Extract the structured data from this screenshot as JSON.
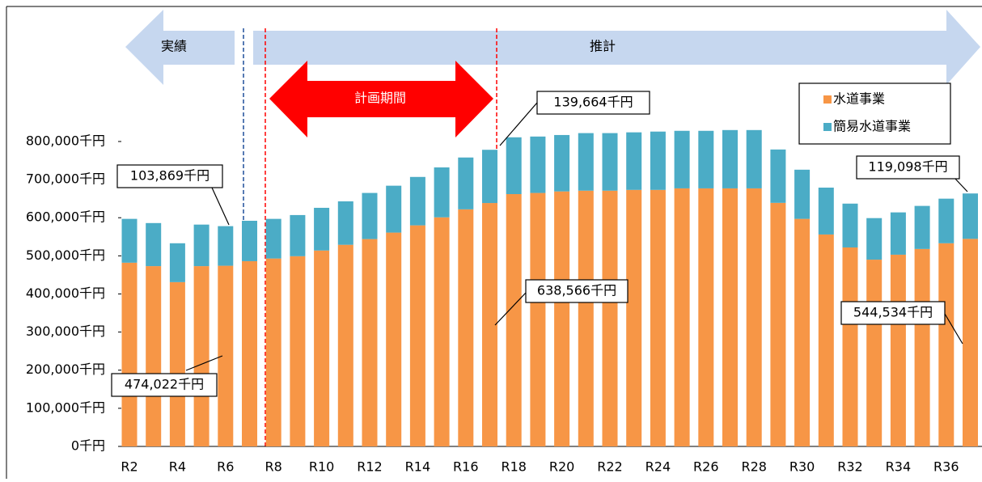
{
  "chart_data": {
    "type": "stacked_bar",
    "categories": [
      "R2",
      null,
      "R4",
      null,
      "R6",
      null,
      "R8",
      null,
      "R10",
      null,
      "R12",
      null,
      "R14",
      null,
      "R16",
      null,
      "R18",
      null,
      "R20",
      null,
      "R22",
      null,
      "R24",
      null,
      "R26",
      null,
      "R28",
      null,
      "R30",
      null,
      "R32",
      null,
      "R34",
      null,
      "R36",
      null
    ],
    "series": [
      {
        "name": "水道事業",
        "color": "#f79646",
        "values": [
          482000,
          473000,
          431000,
          473000,
          474022,
          486000,
          493000,
          499000,
          514000,
          529000,
          544000,
          561000,
          580000,
          601000,
          622000,
          638566,
          662000,
          665000,
          669000,
          671000,
          671000,
          673000,
          673000,
          677000,
          677000,
          677000,
          677000,
          639000,
          597000,
          556000,
          522000,
          490000,
          503000,
          518000,
          533000,
          544534
        ],
        "value_labels": [
          null,
          null,
          null,
          null,
          "474,022千円",
          null,
          null,
          null,
          null,
          null,
          null,
          null,
          null,
          null,
          null,
          "638,566千円",
          null,
          null,
          null,
          null,
          null,
          null,
          null,
          null,
          null,
          null,
          null,
          null,
          null,
          null,
          null,
          null,
          null,
          null,
          null,
          "544,534千円"
        ]
      },
      {
        "name": "簡易水道事業",
        "color": "#4bacc6",
        "values": [
          115000,
          113000,
          102000,
          109000,
          103869,
          106000,
          104000,
          108000,
          112000,
          114000,
          121000,
          123000,
          127000,
          131000,
          136000,
          139664,
          149000,
          148000,
          148000,
          151000,
          151000,
          151000,
          153000,
          151000,
          151000,
          153000,
          153000,
          140000,
          129000,
          123000,
          115000,
          109000,
          111000,
          113000,
          117000,
          119098
        ],
        "value_labels": [
          null,
          null,
          null,
          null,
          "103,869千円",
          null,
          null,
          null,
          null,
          null,
          null,
          null,
          null,
          null,
          null,
          "139,664千円",
          null,
          null,
          null,
          null,
          null,
          null,
          null,
          null,
          null,
          null,
          null,
          null,
          null,
          null,
          null,
          null,
          null,
          null,
          null,
          "119,098千円"
        ]
      }
    ],
    "ylim": [
      0,
      1150000
    ],
    "yticks": [
      {
        "value": 0,
        "label": "0千円"
      },
      {
        "value": 100000,
        "label": "100,000千円"
      },
      {
        "value": 200000,
        "label": "200,000千円"
      },
      {
        "value": 300000,
        "label": "300,000千円"
      },
      {
        "value": 400000,
        "label": "400,000千円"
      },
      {
        "value": 500000,
        "label": "500,000千円"
      },
      {
        "value": 600000,
        "label": "600,000千円"
      },
      {
        "value": 700000,
        "label": "700,000千円"
      },
      {
        "value": 800000,
        "label": "800,000千円"
      }
    ],
    "annotations": [
      "実績",
      "推計",
      "計画期間"
    ]
  }
}
